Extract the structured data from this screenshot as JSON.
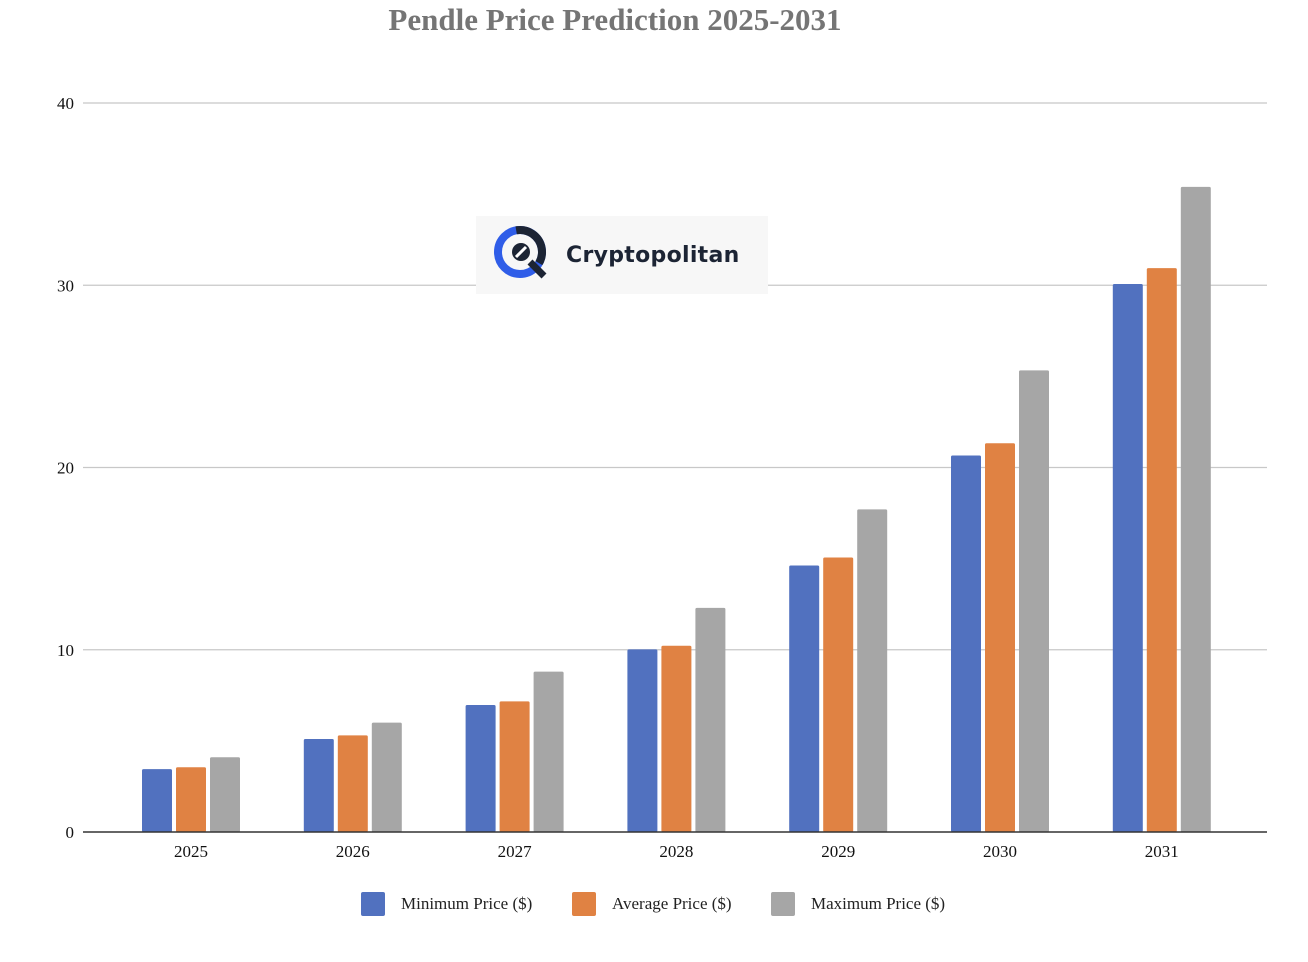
{
  "logo": {
    "text": "Cryptopolitan",
    "icon": "cryptopolitan-logo-icon",
    "accent": "#2f5de8"
  },
  "chart_data": {
    "type": "bar",
    "title": "Pendle Price Prediction 2025-2031",
    "xlabel": "",
    "ylabel": "",
    "categories": [
      "2025",
      "2026",
      "2027",
      "2028",
      "2029",
      "2030",
      "2031"
    ],
    "ylim": [
      0,
      40
    ],
    "yticks": [
      "0",
      "10",
      "20",
      "30",
      "40"
    ],
    "grid": true,
    "legend_position": "bottom",
    "series": [
      {
        "name": "Minimum Price ($)",
        "color": "#5171bf",
        "values": [
          3.45,
          5.1,
          6.97,
          10.02,
          14.62,
          20.66,
          30.07
        ]
      },
      {
        "name": "Average Price ($)",
        "color": "#e08243",
        "values": [
          3.55,
          5.3,
          7.17,
          10.22,
          15.06,
          21.33,
          30.94
        ]
      },
      {
        "name": "Maximum Price ($)",
        "color": "#a6a6a6",
        "values": [
          4.1,
          6.0,
          8.8,
          12.3,
          17.7,
          25.33,
          35.4
        ]
      }
    ]
  }
}
